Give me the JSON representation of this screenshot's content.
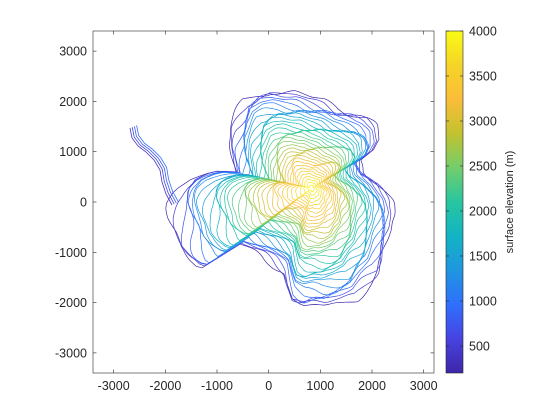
{
  "chart_data": {
    "type": "contour",
    "title": "",
    "xlabel": "",
    "ylabel": "",
    "xlim": [
      -3400,
      3200
    ],
    "ylim": [
      -3400,
      3400
    ],
    "x_ticks": [
      -3000,
      -2000,
      -1000,
      0,
      1000,
      2000,
      3000
    ],
    "y_ticks": [
      3000,
      2000,
      1000,
      0,
      -1000,
      -2000,
      -3000
    ],
    "colorbar": {
      "label": "surface elevation (m)",
      "range": [
        200,
        4000
      ],
      "ticks": [
        4000,
        3500,
        3000,
        2500,
        2000,
        1500,
        1000,
        500
      ],
      "colormap": [
        "#3e26a8",
        "#4743e0",
        "#2f6ffd",
        "#1f96e0",
        "#12b4c4",
        "#27c6a0",
        "#73cd6b",
        "#c2c22f",
        "#fbbd39",
        "#f5d427",
        "#f9fb15"
      ]
    },
    "contour_interval_m": 100,
    "summit": {
      "x": 1000,
      "y": 300,
      "elevation": 4000
    }
  }
}
